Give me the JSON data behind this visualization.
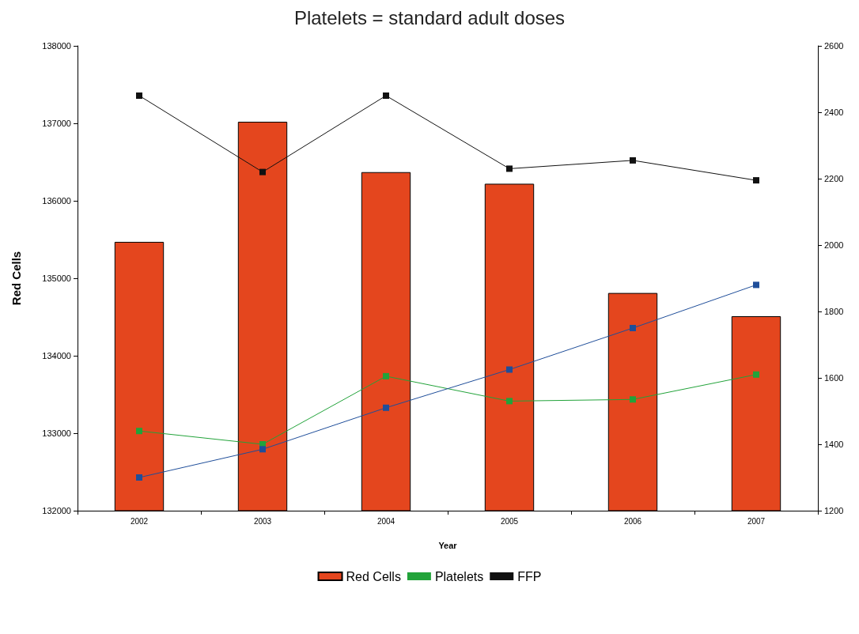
{
  "chart_data": {
    "type": "bar",
    "title": "Platelets = standard adult doses",
    "xlabel": "Year",
    "ylabel": "Red Cells",
    "categories": [
      "2002",
      "2003",
      "2004",
      "2005",
      "2006",
      "2007"
    ],
    "series": [
      {
        "name": "Red Cells",
        "color": "#e4461e",
        "values": [
          135470,
          137020,
          136370,
          136220,
          134810,
          134510
        ]
      },
      {
        "name": "Platelets",
        "type": "line",
        "axis": "y2",
        "color": "#22a33a",
        "values": [
          1440,
          1400,
          1605,
          1530,
          1535,
          1610
        ]
      },
      {
        "name": "FFP",
        "type": "line",
        "axis": "y2",
        "color": "#111111",
        "values": [
          2450,
          2220,
          2450,
          2230,
          2255,
          2195
        ]
      },
      {
        "type": "line",
        "axis": "y2",
        "color": "#1f4e9a",
        "values": [
          1300,
          1385,
          1510,
          1625,
          1750,
          1880
        ]
      }
    ],
    "ylim": [
      132000,
      138000
    ],
    "yticks": [
      132000,
      133000,
      134000,
      135000,
      136000,
      137000,
      138000
    ],
    "y2lim": [
      1200,
      2600
    ],
    "y2ticks": [
      1200,
      1400,
      1600,
      1800,
      2000,
      2200,
      2400,
      2600
    ],
    "grid": false,
    "legend": "bottom",
    "marker": "square",
    "line_style": "solid"
  }
}
